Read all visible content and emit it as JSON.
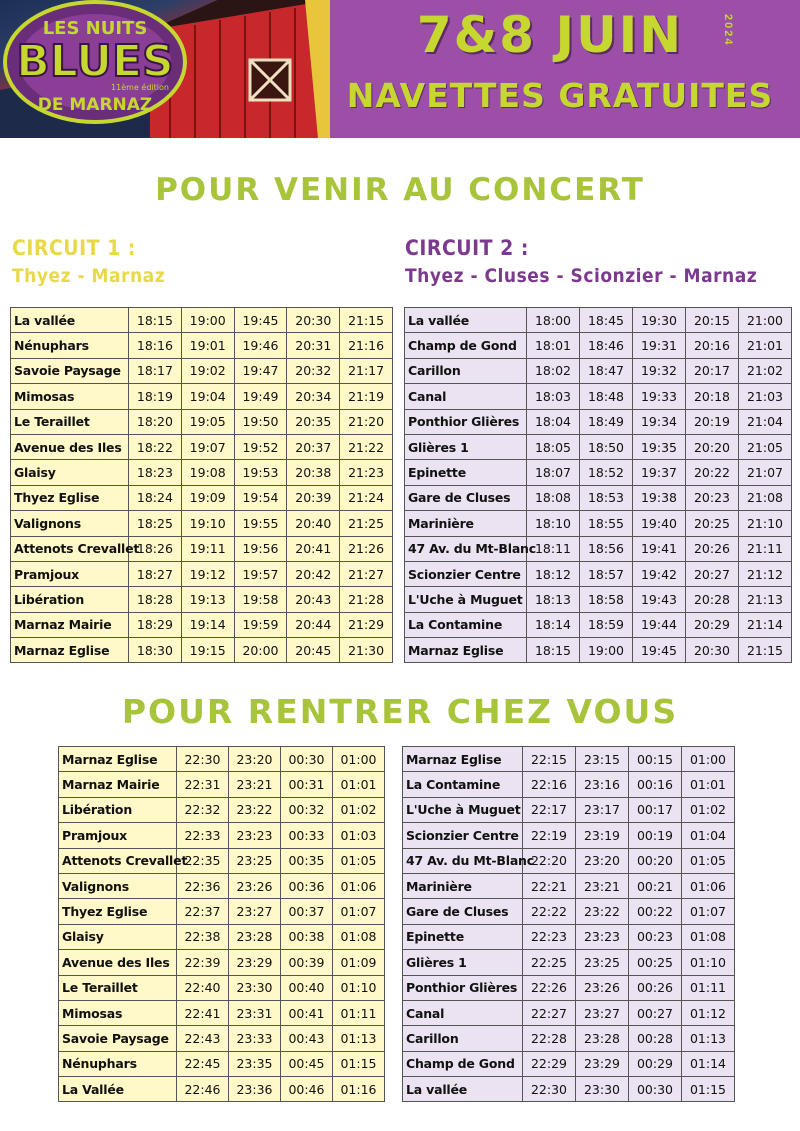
{
  "header": {
    "logo_top": "LES NUITS",
    "logo_main": "BLUES",
    "logo_edition": "11ème édition",
    "logo_bottom": "DE MARNAZ",
    "date": "7&8 JUIN",
    "year": "2024",
    "subtitle": "NAVETTES GRATUITES"
  },
  "sections": {
    "go_title": "POUR VENIR AU CONCERT",
    "back_title": "POUR RENTRER CHEZ VOUS"
  },
  "circuits": {
    "c1": {
      "label": "CIRCUIT 1 :",
      "route": "Thyez - Marnaz"
    },
    "c2": {
      "label": "CIRCUIT 2 :",
      "route": "Thyez - Cluses - Scionzier - Marnaz"
    }
  },
  "tables": {
    "go_1": [
      {
        "stop": "La vallée",
        "times": [
          "18:15",
          "19:00",
          "19:45",
          "20:30",
          "21:15"
        ]
      },
      {
        "stop": "Nénuphars",
        "times": [
          "18:16",
          "19:01",
          "19:46",
          "20:31",
          "21:16"
        ]
      },
      {
        "stop": "Savoie Paysage",
        "times": [
          "18:17",
          "19:02",
          "19:47",
          "20:32",
          "21:17"
        ]
      },
      {
        "stop": "Mimosas",
        "times": [
          "18:19",
          "19:04",
          "19:49",
          "20:34",
          "21:19"
        ]
      },
      {
        "stop": "Le Teraillet",
        "times": [
          "18:20",
          "19:05",
          "19:50",
          "20:35",
          "21:20"
        ]
      },
      {
        "stop": "Avenue des Iles",
        "times": [
          "18:22",
          "19:07",
          "19:52",
          "20:37",
          "21:22"
        ]
      },
      {
        "stop": "Glaisy",
        "times": [
          "18:23",
          "19:08",
          "19:53",
          "20:38",
          "21:23"
        ]
      },
      {
        "stop": "Thyez Eglise",
        "times": [
          "18:24",
          "19:09",
          "19:54",
          "20:39",
          "21:24"
        ]
      },
      {
        "stop": "Valignons",
        "times": [
          "18:25",
          "19:10",
          "19:55",
          "20:40",
          "21:25"
        ]
      },
      {
        "stop": "Attenots Crevallet",
        "times": [
          "18:26",
          "19:11",
          "19:56",
          "20:41",
          "21:26"
        ]
      },
      {
        "stop": "Pramjoux",
        "times": [
          "18:27",
          "19:12",
          "19:57",
          "20:42",
          "21:27"
        ]
      },
      {
        "stop": "Libération",
        "times": [
          "18:28",
          "19:13",
          "19:58",
          "20:43",
          "21:28"
        ]
      },
      {
        "stop": "Marnaz Mairie",
        "times": [
          "18:29",
          "19:14",
          "19:59",
          "20:44",
          "21:29"
        ]
      },
      {
        "stop": "Marnaz Eglise",
        "times": [
          "18:30",
          "19:15",
          "20:00",
          "20:45",
          "21:30"
        ]
      }
    ],
    "go_2": [
      {
        "stop": "La vallée",
        "times": [
          "18:00",
          "18:45",
          "19:30",
          "20:15",
          "21:00"
        ]
      },
      {
        "stop": "Champ de Gond",
        "times": [
          "18:01",
          "18:46",
          "19:31",
          "20:16",
          "21:01"
        ]
      },
      {
        "stop": "Carillon",
        "times": [
          "18:02",
          "18:47",
          "19:32",
          "20:17",
          "21:02"
        ]
      },
      {
        "stop": "Canal",
        "times": [
          "18:03",
          "18:48",
          "19:33",
          "20:18",
          "21:03"
        ]
      },
      {
        "stop": "Ponthior Glières",
        "times": [
          "18:04",
          "18:49",
          "19:34",
          "20:19",
          "21:04"
        ]
      },
      {
        "stop": "Glières 1",
        "times": [
          "18:05",
          "18:50",
          "19:35",
          "20:20",
          "21:05"
        ]
      },
      {
        "stop": "Epinette",
        "times": [
          "18:07",
          "18:52",
          "19:37",
          "20:22",
          "21:07"
        ]
      },
      {
        "stop": "Gare de Cluses",
        "times": [
          "18:08",
          "18:53",
          "19:38",
          "20:23",
          "21:08"
        ]
      },
      {
        "stop": "Marinière",
        "times": [
          "18:10",
          "18:55",
          "19:40",
          "20:25",
          "21:10"
        ]
      },
      {
        "stop": "47 Av. du Mt-Blanc",
        "times": [
          "18:11",
          "18:56",
          "19:41",
          "20:26",
          "21:11"
        ]
      },
      {
        "stop": "Scionzier Centre",
        "times": [
          "18:12",
          "18:57",
          "19:42",
          "20:27",
          "21:12"
        ]
      },
      {
        "stop": "L'Uche à Muguet",
        "times": [
          "18:13",
          "18:58",
          "19:43",
          "20:28",
          "21:13"
        ]
      },
      {
        "stop": "La Contamine",
        "times": [
          "18:14",
          "18:59",
          "19:44",
          "20:29",
          "21:14"
        ]
      },
      {
        "stop": "Marnaz Eglise",
        "times": [
          "18:15",
          "19:00",
          "19:45",
          "20:30",
          "21:15"
        ]
      }
    ],
    "back_1": [
      {
        "stop": "Marnaz Eglise",
        "times": [
          "22:30",
          "23:20",
          "00:30",
          "01:00"
        ]
      },
      {
        "stop": "Marnaz Mairie",
        "times": [
          "22:31",
          "23:21",
          "00:31",
          "01:01"
        ]
      },
      {
        "stop": "Libération",
        "times": [
          "22:32",
          "23:22",
          "00:32",
          "01:02"
        ]
      },
      {
        "stop": "Pramjoux",
        "times": [
          "22:33",
          "23:23",
          "00:33",
          "01:03"
        ]
      },
      {
        "stop": "Attenots Crevallet",
        "times": [
          "22:35",
          "23:25",
          "00:35",
          "01:05"
        ]
      },
      {
        "stop": "Valignons",
        "times": [
          "22:36",
          "23:26",
          "00:36",
          "01:06"
        ]
      },
      {
        "stop": "Thyez Eglise",
        "times": [
          "22:37",
          "23:27",
          "00:37",
          "01:07"
        ]
      },
      {
        "stop": "Glaisy",
        "times": [
          "22:38",
          "23:28",
          "00:38",
          "01:08"
        ]
      },
      {
        "stop": "Avenue des Iles",
        "times": [
          "22:39",
          "23:29",
          "00:39",
          "01:09"
        ]
      },
      {
        "stop": "Le Teraillet",
        "times": [
          "22:40",
          "23:30",
          "00:40",
          "01:10"
        ]
      },
      {
        "stop": "Mimosas",
        "times": [
          "22:41",
          "23:31",
          "00:41",
          "01:11"
        ]
      },
      {
        "stop": "Savoie Paysage",
        "times": [
          "22:43",
          "23:33",
          "00:43",
          "01:13"
        ]
      },
      {
        "stop": "Nénuphars",
        "times": [
          "22:45",
          "23:35",
          "00:45",
          "01:15"
        ]
      },
      {
        "stop": "La Vallée",
        "times": [
          "22:46",
          "23:36",
          "00:46",
          "01:16"
        ]
      }
    ],
    "back_2": [
      {
        "stop": "Marnaz Eglise",
        "times": [
          "22:15",
          "23:15",
          "00:15",
          "01:00"
        ]
      },
      {
        "stop": "La Contamine",
        "times": [
          "22:16",
          "23:16",
          "00:16",
          "01:01"
        ]
      },
      {
        "stop": "L'Uche à Muguet",
        "times": [
          "22:17",
          "23:17",
          "00:17",
          "01:02"
        ]
      },
      {
        "stop": "Scionzier Centre",
        "times": [
          "22:19",
          "23:19",
          "00:19",
          "01:04"
        ]
      },
      {
        "stop": "47 Av. du Mt-Blanc",
        "times": [
          "22:20",
          "23:20",
          "00:20",
          "01:05"
        ]
      },
      {
        "stop": "Marinière",
        "times": [
          "22:21",
          "23:21",
          "00:21",
          "01:06"
        ]
      },
      {
        "stop": "Gare de Cluses",
        "times": [
          "22:22",
          "23:22",
          "00:22",
          "01:07"
        ]
      },
      {
        "stop": "Epinette",
        "times": [
          "22:23",
          "23:23",
          "00:23",
          "01:08"
        ]
      },
      {
        "stop": "Glières 1",
        "times": [
          "22:25",
          "23:25",
          "00:25",
          "01:10"
        ]
      },
      {
        "stop": "Ponthior Glières",
        "times": [
          "22:26",
          "23:26",
          "00:26",
          "01:11"
        ]
      },
      {
        "stop": "Canal",
        "times": [
          "22:27",
          "23:27",
          "00:27",
          "01:12"
        ]
      },
      {
        "stop": "Carillon",
        "times": [
          "22:28",
          "23:28",
          "00:28",
          "01:13"
        ]
      },
      {
        "stop": "Champ de Gond",
        "times": [
          "22:29",
          "23:29",
          "00:29",
          "01:14"
        ]
      },
      {
        "stop": "La vallée",
        "times": [
          "22:30",
          "23:30",
          "00:30",
          "01:15"
        ]
      }
    ]
  },
  "colors": {
    "header_purple": "#9b4fa6",
    "accent_green": "#a8c43a",
    "yellow_head": "#e8d94a",
    "purple_head": "#7c3a8e",
    "table_yellow": "#fff9c9",
    "table_purple": "#ebe3f1"
  }
}
